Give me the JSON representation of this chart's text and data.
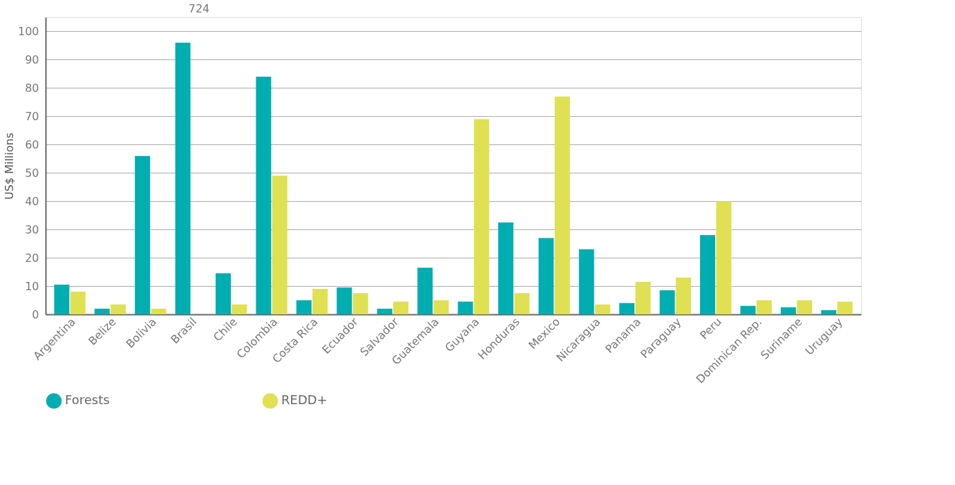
{
  "chart_data": {
    "type": "bar",
    "ylabel": "US$ Millions",
    "categories": [
      "Argentina",
      "Belize",
      "Bolivia",
      "Brasil",
      "Chile",
      "Colombia",
      "Costa Rica",
      "Ecuador",
      "Salvador",
      "Guatemala",
      "Guyana",
      "Honduras",
      "Mexico",
      "Nicaragua",
      "Panama",
      "Paraguay",
      "Peru",
      "Dominican Rep.",
      "Suriname",
      "Uruguay"
    ],
    "series": [
      {
        "name": "Forests",
        "color": "#00adb0",
        "values": [
          10.5,
          2,
          56,
          96,
          14.5,
          84,
          5,
          9.5,
          2,
          16.5,
          4.5,
          32.5,
          27,
          23,
          4,
          8.5,
          28,
          3,
          2.5,
          1.5
        ]
      },
      {
        "name": "REDD+",
        "color": "#dfe052",
        "values": [
          8,
          3.5,
          2,
          null,
          3.5,
          49,
          9,
          7.5,
          4.5,
          5,
          69,
          7.5,
          77,
          3.5,
          11.5,
          13,
          40,
          5,
          5,
          4.5
        ],
        "value_labels": [
          null,
          null,
          null,
          "724",
          null,
          null,
          null,
          null,
          null,
          null,
          null,
          null,
          null,
          null,
          null,
          null,
          null,
          null,
          null,
          null
        ]
      }
    ],
    "ylim": [
      0,
      105
    ],
    "yticks": [
      0,
      10,
      20,
      30,
      40,
      50,
      60,
      70,
      80,
      90,
      100
    ],
    "grid": "y",
    "legend": "bottom"
  }
}
